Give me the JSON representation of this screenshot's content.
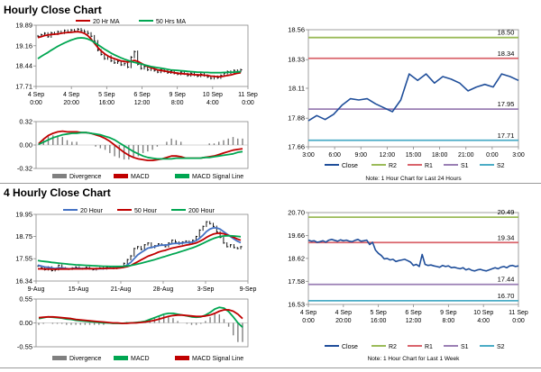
{
  "sections": {
    "hourly_title": "Hourly Close Chart",
    "four_hourly_title": "4 Hourly Close Chart"
  },
  "chart_data": [
    {
      "id": "hourly_price",
      "type": "line",
      "title": "",
      "legend": [
        {
          "name": "20 Hr MA",
          "color": "#c00000"
        },
        {
          "name": "50 Hrs MA",
          "color": "#00a651"
        }
      ],
      "y_ticks": [
        "19.89",
        "19.16",
        "18.44",
        "17.71"
      ],
      "ylim": [
        17.71,
        19.89
      ],
      "x_ticks": [
        [
          "4 Sep",
          "0:00"
        ],
        [
          "4 Sep",
          "20:00"
        ],
        [
          "5 Sep",
          "16:00"
        ],
        [
          "6 Sep",
          "12:00"
        ],
        [
          "9 Sep",
          "8:00"
        ],
        [
          "10 Sep",
          "4:00"
        ],
        [
          "11 Sep",
          "0:00"
        ]
      ],
      "series": [
        {
          "name": "Close",
          "color": "#000000",
          "style": "bars",
          "values": [
            19.5,
            19.55,
            19.6,
            19.48,
            19.62,
            19.58,
            19.66,
            19.62,
            19.7,
            19.65,
            19.72,
            19.68,
            19.75,
            19.7,
            19.66,
            19.6,
            19.5,
            19.32,
            19.0,
            18.85,
            18.7,
            18.78,
            18.62,
            18.55,
            18.6,
            18.48,
            18.52,
            18.4,
            18.75,
            18.95,
            18.5,
            18.35,
            18.42,
            18.3,
            18.36,
            18.28,
            18.22,
            18.3,
            18.25,
            18.2,
            18.26,
            18.18,
            18.15,
            18.22,
            18.16,
            18.1,
            18.18,
            18.12,
            18.08,
            18.15,
            18.1,
            18.05,
            18.0,
            18.06,
            18.02,
            18.1,
            18.18,
            18.24,
            18.2,
            18.28,
            18.25,
            18.3
          ]
        },
        {
          "name": "20 Hr MA",
          "color": "#c00000",
          "style": "line",
          "values": [
            19.45,
            19.48,
            19.52,
            19.54,
            19.56,
            19.57,
            19.58,
            19.6,
            19.62,
            19.63,
            19.64,
            19.65,
            19.66,
            19.64,
            19.6,
            19.52,
            19.4,
            19.25,
            19.1,
            18.98,
            18.88,
            18.8,
            18.74,
            18.7,
            18.66,
            18.62,
            18.6,
            18.58,
            18.6,
            18.64,
            18.6,
            18.54,
            18.48,
            18.42,
            18.38,
            18.34,
            18.3,
            18.28,
            18.26,
            18.24,
            18.22,
            18.2,
            18.18,
            18.17,
            18.16,
            18.15,
            18.14,
            18.13,
            18.12,
            18.12,
            18.11,
            18.1,
            18.08,
            18.07,
            18.06,
            18.06,
            18.08,
            18.1,
            18.12,
            18.15,
            18.18,
            18.2
          ]
        },
        {
          "name": "50 Hrs MA",
          "color": "#00a651",
          "style": "line",
          "values": [
            18.7,
            18.78,
            18.85,
            18.92,
            19.0,
            19.07,
            19.14,
            19.2,
            19.26,
            19.31,
            19.36,
            19.4,
            19.43,
            19.44,
            19.43,
            19.4,
            19.35,
            19.28,
            19.2,
            19.12,
            19.04,
            18.97,
            18.9,
            18.84,
            18.78,
            18.73,
            18.68,
            18.64,
            18.6,
            18.57,
            18.54,
            18.51,
            18.48,
            18.45,
            18.42,
            18.4,
            18.38,
            18.36,
            18.34,
            18.32,
            18.3,
            18.29,
            18.28,
            18.27,
            18.26,
            18.25,
            18.24,
            18.23,
            18.22,
            18.22,
            18.21,
            18.21,
            18.2,
            18.2,
            18.2,
            18.2,
            18.21,
            18.21,
            18.22,
            18.22,
            18.23,
            18.24
          ]
        }
      ]
    },
    {
      "id": "hourly_macd",
      "type": "line",
      "y_ticks": [
        "0.32",
        "0.00",
        "-0.32"
      ],
      "ylim": [
        -0.32,
        0.32
      ],
      "legend": [
        {
          "name": "Divergence",
          "color": "#808080"
        },
        {
          "name": "MACD",
          "color": "#c00000"
        },
        {
          "name": "MACD Signal Line",
          "color": "#00a651"
        }
      ],
      "series": [
        {
          "name": "MACD",
          "color": "#c00000",
          "values": [
            0.02,
            0.08,
            0.13,
            0.16,
            0.18,
            0.19,
            0.18,
            0.18,
            0.18,
            0.17,
            0.17,
            0.16,
            0.14,
            0.12,
            0.09,
            0.05,
            0.0,
            -0.05,
            -0.1,
            -0.14,
            -0.17,
            -0.19,
            -0.2,
            -0.21,
            -0.21,
            -0.2,
            -0.19,
            -0.17,
            -0.15,
            -0.15,
            -0.16,
            -0.18,
            -0.18,
            -0.18,
            -0.18,
            -0.17,
            -0.16,
            -0.15,
            -0.13,
            -0.11,
            -0.09,
            -0.07,
            -0.06,
            -0.05
          ]
        },
        {
          "name": "MACD Signal Line",
          "color": "#00a651",
          "values": [
            0.01,
            0.04,
            0.07,
            0.1,
            0.12,
            0.14,
            0.15,
            0.16,
            0.16,
            0.17,
            0.17,
            0.16,
            0.15,
            0.14,
            0.12,
            0.1,
            0.07,
            0.03,
            -0.01,
            -0.05,
            -0.09,
            -0.12,
            -0.15,
            -0.17,
            -0.18,
            -0.19,
            -0.19,
            -0.19,
            -0.19,
            -0.18,
            -0.18,
            -0.18,
            -0.18,
            -0.18,
            -0.18,
            -0.17,
            -0.17,
            -0.16,
            -0.15,
            -0.14,
            -0.13,
            -0.12,
            -0.1,
            -0.09
          ]
        }
      ]
    },
    {
      "id": "hourly_24h",
      "type": "line",
      "y_ticks": [
        "18.56",
        "18.33",
        "18.11",
        "17.88",
        "17.66"
      ],
      "ylim": [
        17.66,
        18.56
      ],
      "x_ticks": [
        "3:00",
        "6:00",
        "9:00",
        "12:00",
        "15:00",
        "18:00",
        "21:00",
        "0:00",
        "3:00"
      ],
      "series": [
        {
          "name": "Close",
          "color": "#1f4e9a",
          "values": [
            17.86,
            17.9,
            17.87,
            17.91,
            17.98,
            18.03,
            18.02,
            18.03,
            17.99,
            17.96,
            17.93,
            18.02,
            18.22,
            18.17,
            18.22,
            18.15,
            18.2,
            18.18,
            18.15,
            18.09,
            18.12,
            18.14,
            18.12,
            18.22,
            18.2,
            18.17
          ]
        },
        {
          "name": "R2",
          "color": "#9bbb59",
          "values": [
            18.5
          ],
          "label": "18.50"
        },
        {
          "name": "R1",
          "color": "#d9636b",
          "values": [
            18.34
          ],
          "label": "18.34"
        },
        {
          "name": "S1",
          "color": "#9a7fb4",
          "values": [
            17.95
          ],
          "label": "17.95"
        },
        {
          "name": "S2",
          "color": "#4bacc6",
          "values": [
            17.71
          ],
          "label": "17.71"
        }
      ],
      "note": "Note: 1 Hour Chart for Last 24 Hours"
    },
    {
      "id": "four_hourly_price",
      "type": "line",
      "legend": [
        {
          "name": "20 Hour",
          "color": "#4472c4"
        },
        {
          "name": "50 Hour",
          "color": "#c00000"
        },
        {
          "name": "200 Hour",
          "color": "#00a651"
        }
      ],
      "y_ticks": [
        "19.95",
        "18.75",
        "17.55",
        "16.34"
      ],
      "ylim": [
        16.34,
        19.95
      ],
      "x_ticks": [
        "9-Aug",
        "15-Aug",
        "21-Aug",
        "28-Aug",
        "3-Sep",
        "9-Sep"
      ],
      "series": [
        {
          "name": "Close",
          "color": "#000000",
          "style": "bars",
          "values": [
            17.15,
            17.05,
            16.95,
            17.1,
            16.9,
            16.95,
            17.2,
            17.05,
            17.0,
            16.98,
            17.05,
            17.1,
            17.02,
            17.0,
            17.08,
            17.0,
            16.95,
            17.02,
            17.05,
            17.0,
            17.1,
            17.05,
            17.02,
            17.08,
            17.12,
            17.3,
            17.5,
            17.7,
            18.1,
            18.2,
            18.05,
            18.3,
            18.4,
            18.15,
            18.25,
            18.35,
            18.3,
            18.2,
            18.4,
            18.55,
            18.45,
            18.35,
            18.45,
            18.5,
            18.4,
            18.55,
            18.75,
            19.1,
            19.3,
            19.55,
            19.45,
            19.3,
            19.0,
            18.7,
            18.4,
            18.2,
            18.3,
            18.15,
            18.1,
            18.2
          ]
        },
        {
          "name": "20 Hour",
          "color": "#4472c4",
          "values": [
            17.2,
            17.15,
            17.1,
            17.08,
            17.05,
            17.02,
            17.05,
            17.05,
            17.03,
            17.0,
            17.02,
            17.03,
            17.03,
            17.02,
            17.03,
            17.02,
            17.0,
            17.0,
            17.01,
            17.01,
            17.03,
            17.04,
            17.04,
            17.05,
            17.06,
            17.12,
            17.22,
            17.35,
            17.55,
            17.75,
            17.88,
            18.0,
            18.12,
            18.16,
            18.2,
            18.26,
            18.28,
            18.28,
            18.31,
            18.36,
            18.38,
            18.38,
            18.4,
            18.42,
            18.42,
            18.45,
            18.52,
            18.65,
            18.82,
            19.02,
            19.15,
            19.22,
            19.22,
            19.15,
            19.02,
            18.88,
            18.75,
            18.62,
            18.5,
            18.42
          ]
        },
        {
          "name": "50 Hour",
          "color": "#c00000",
          "values": [
            17.0,
            17.0,
            16.99,
            16.99,
            16.98,
            16.98,
            16.99,
            16.99,
            16.99,
            16.99,
            17.0,
            17.0,
            17.0,
            17.0,
            17.01,
            17.01,
            17.01,
            17.01,
            17.02,
            17.02,
            17.03,
            17.03,
            17.03,
            17.04,
            17.05,
            17.08,
            17.12,
            17.18,
            17.28,
            17.38,
            17.48,
            17.58,
            17.68,
            17.75,
            17.82,
            17.9,
            17.96,
            18.0,
            18.06,
            18.12,
            18.16,
            18.2,
            18.24,
            18.28,
            18.31,
            18.35,
            18.4,
            18.48,
            18.58,
            18.7,
            18.8,
            18.88,
            18.92,
            18.93,
            18.9,
            18.84,
            18.78,
            18.7,
            18.62,
            18.55
          ]
        },
        {
          "name": "200 Hour",
          "color": "#00a651",
          "values": [
            17.45,
            17.42,
            17.4,
            17.38,
            17.35,
            17.33,
            17.31,
            17.29,
            17.27,
            17.25,
            17.24,
            17.22,
            17.21,
            17.2,
            17.19,
            17.18,
            17.17,
            17.16,
            17.15,
            17.14,
            17.14,
            17.13,
            17.13,
            17.13,
            17.13,
            17.14,
            17.16,
            17.18,
            17.22,
            17.26,
            17.3,
            17.35,
            17.4,
            17.45,
            17.5,
            17.56,
            17.62,
            17.67,
            17.73,
            17.79,
            17.84,
            17.9,
            17.96,
            18.02,
            18.08,
            18.14,
            18.21,
            18.29,
            18.38,
            18.47,
            18.56,
            18.64,
            18.7,
            18.75,
            18.78,
            18.79,
            18.79,
            18.78,
            18.76,
            18.74
          ]
        }
      ]
    },
    {
      "id": "four_hourly_macd",
      "type": "line",
      "y_ticks": [
        "0.55",
        "0.00",
        "-0.55"
      ],
      "ylim": [
        -0.55,
        0.55
      ],
      "legend": [
        {
          "name": "Divergence",
          "color": "#808080"
        },
        {
          "name": "MACD",
          "color": "#00a651"
        },
        {
          "name": "MACD Signal Line",
          "color": "#c00000"
        }
      ],
      "series": [
        {
          "name": "MACD",
          "color": "#00a651",
          "values": [
            0.1,
            0.12,
            0.14,
            0.13,
            0.12,
            0.11,
            0.09,
            0.08,
            0.06,
            0.05,
            0.04,
            0.03,
            0.02,
            0.01,
            0.0,
            0.0,
            -0.01,
            -0.01,
            -0.01,
            0.0,
            0.0,
            0.01,
            0.02,
            0.04,
            0.08,
            0.12,
            0.16,
            0.2,
            0.22,
            0.22,
            0.2,
            0.18,
            0.16,
            0.14,
            0.13,
            0.14,
            0.18,
            0.24,
            0.32,
            0.36,
            0.34,
            0.26,
            0.14,
            0.0,
            -0.1
          ]
        },
        {
          "name": "MACD Signal Line",
          "color": "#c00000",
          "values": [
            0.12,
            0.13,
            0.14,
            0.14,
            0.13,
            0.12,
            0.11,
            0.1,
            0.08,
            0.07,
            0.06,
            0.05,
            0.04,
            0.03,
            0.02,
            0.01,
            0.0,
            0.0,
            -0.01,
            -0.01,
            0.0,
            0.0,
            0.01,
            0.02,
            0.04,
            0.06,
            0.09,
            0.12,
            0.15,
            0.17,
            0.18,
            0.18,
            0.17,
            0.16,
            0.15,
            0.15,
            0.16,
            0.18,
            0.22,
            0.27,
            0.3,
            0.3,
            0.27,
            0.2,
            0.1
          ]
        }
      ]
    },
    {
      "id": "four_hourly_week",
      "type": "line",
      "y_ticks": [
        "20.70",
        "19.66",
        "18.62",
        "17.58",
        "16.53"
      ],
      "ylim": [
        16.53,
        20.7
      ],
      "x_ticks": [
        [
          "4 Sep",
          "0:00"
        ],
        [
          "4 Sep",
          "20:00"
        ],
        [
          "5 Sep",
          "16:00"
        ],
        [
          "6 Sep",
          "12:00"
        ],
        [
          "9 Sep",
          "8:00"
        ],
        [
          "10 Sep",
          "4:00"
        ],
        [
          "11 Sep",
          "0:00"
        ]
      ],
      "series": [
        {
          "name": "Close",
          "color": "#1f4e9a",
          "values": [
            19.45,
            19.4,
            19.42,
            19.35,
            19.38,
            19.42,
            19.36,
            19.45,
            19.48,
            19.44,
            19.4,
            19.46,
            19.42,
            19.45,
            19.4,
            19.38,
            19.44,
            19.48,
            19.4,
            19.42,
            19.45,
            19.25,
            19.35,
            19.0,
            18.85,
            18.75,
            18.6,
            18.62,
            18.55,
            18.58,
            18.48,
            18.52,
            18.55,
            18.58,
            18.52,
            18.45,
            18.3,
            18.35,
            18.25,
            18.8,
            18.35,
            18.3,
            18.32,
            18.28,
            18.25,
            18.22,
            18.3,
            18.25,
            18.28,
            18.2,
            18.22,
            18.18,
            18.15,
            18.2,
            18.1,
            18.15,
            18.08,
            18.05,
            18.1,
            18.12,
            18.08,
            18.05,
            18.1,
            18.15,
            18.2,
            18.15,
            18.22,
            18.25,
            18.2,
            18.28,
            18.3,
            18.25,
            18.28
          ]
        },
        {
          "name": "R2",
          "color": "#9bbb59",
          "values": [
            20.49
          ],
          "label": "20.49"
        },
        {
          "name": "R1",
          "color": "#d9636b",
          "values": [
            19.34
          ],
          "label": "19.34"
        },
        {
          "name": "S1",
          "color": "#9a7fb4",
          "values": [
            17.44
          ],
          "label": "17.44"
        },
        {
          "name": "S2",
          "color": "#4bacc6",
          "values": [
            16.7
          ],
          "label": "16.70"
        }
      ],
      "note": "Note: 1 Hour Chart for Last 1 Week"
    }
  ]
}
